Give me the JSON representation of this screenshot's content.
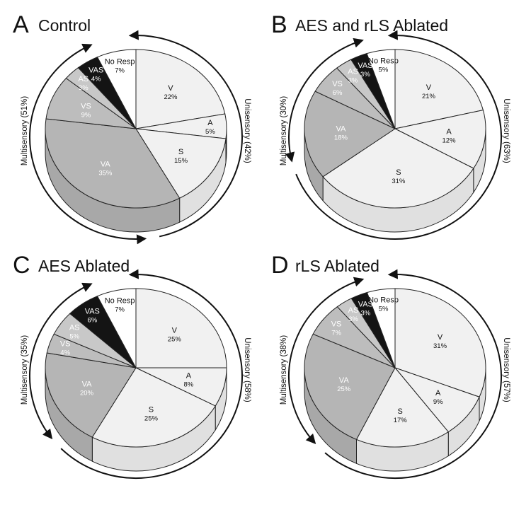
{
  "chart_data": [
    {
      "type": "pie",
      "panel_letter": "A",
      "title": "Control",
      "unisensory_label": "Unisensory (42%)",
      "multisensory_label": "Multisensory (51%)",
      "slices": [
        {
          "label": "V",
          "pct_label": "22%",
          "value": 22,
          "color": "#f1f1f1"
        },
        {
          "label": "A",
          "pct_label": "5%",
          "value": 5,
          "color": "#f1f1f1"
        },
        {
          "label": "S",
          "pct_label": "15%",
          "value": 15,
          "color": "#f1f1f1"
        },
        {
          "label": "VA",
          "pct_label": "35%",
          "value": 35,
          "color": "#b5b5b5"
        },
        {
          "label": "VS",
          "pct_label": "9%",
          "value": 9,
          "color": "#bdbdbd"
        },
        {
          "label": "AS",
          "pct_label": "3%",
          "value": 3,
          "color": "#c8c8c8"
        },
        {
          "label": "VAS",
          "pct_label": "4%",
          "value": 4,
          "color": "#141414"
        },
        {
          "label": "No Resp",
          "pct_label": "7%",
          "value": 7,
          "color": "#ffffff"
        }
      ]
    },
    {
      "type": "pie",
      "panel_letter": "B",
      "title": "AES and rLS Ablated",
      "unisensory_label": "Unisensory (63%)",
      "multisensory_label": "Multisensory (30%)",
      "slices": [
        {
          "label": "V",
          "pct_label": "21%",
          "value": 21,
          "color": "#f1f1f1"
        },
        {
          "label": "A",
          "pct_label": "12%",
          "value": 12,
          "color": "#f1f1f1"
        },
        {
          "label": "S",
          "pct_label": "31%",
          "value": 31,
          "color": "#f1f1f1"
        },
        {
          "label": "VA",
          "pct_label": "18%",
          "value": 18,
          "color": "#b5b5b5"
        },
        {
          "label": "VS",
          "pct_label": "6%",
          "value": 6,
          "color": "#bdbdbd"
        },
        {
          "label": "AS",
          "pct_label": "3%",
          "value": 3,
          "color": "#c8c8c8"
        },
        {
          "label": "VAS",
          "pct_label": "3%",
          "value": 3,
          "color": "#141414"
        },
        {
          "label": "No Resp",
          "pct_label": "5%",
          "value": 5,
          "color": "#ffffff"
        }
      ]
    },
    {
      "type": "pie",
      "panel_letter": "C",
      "title": "AES Ablated",
      "unisensory_label": "Unisensory (58%)",
      "multisensory_label": "Multisensory (35%)",
      "slices": [
        {
          "label": "V",
          "pct_label": "25%",
          "value": 25,
          "color": "#f1f1f1"
        },
        {
          "label": "A",
          "pct_label": "8%",
          "value": 8,
          "color": "#f1f1f1"
        },
        {
          "label": "S",
          "pct_label": "25%",
          "value": 25,
          "color": "#f1f1f1"
        },
        {
          "label": "VA",
          "pct_label": "20%",
          "value": 20,
          "color": "#b5b5b5"
        },
        {
          "label": "VS",
          "pct_label": "4%",
          "value": 4,
          "color": "#bdbdbd"
        },
        {
          "label": "AS",
          "pct_label": "5%",
          "value": 5,
          "color": "#c8c8c8"
        },
        {
          "label": "VAS",
          "pct_label": "6%",
          "value": 6,
          "color": "#141414"
        },
        {
          "label": "No Resp",
          "pct_label": "7%",
          "value": 7,
          "color": "#ffffff"
        }
      ]
    },
    {
      "type": "pie",
      "panel_letter": "D",
      "title": "rLS Ablated",
      "unisensory_label": "Unisensory (57%)",
      "multisensory_label": "Multisensory (38%)",
      "slices": [
        {
          "label": "V",
          "pct_label": "31%",
          "value": 31,
          "color": "#f1f1f1"
        },
        {
          "label": "A",
          "pct_label": "9%",
          "value": 9,
          "color": "#f1f1f1"
        },
        {
          "label": "S",
          "pct_label": "17%",
          "value": 17,
          "color": "#f1f1f1"
        },
        {
          "label": "VA",
          "pct_label": "25%",
          "value": 25,
          "color": "#b5b5b5"
        },
        {
          "label": "VS",
          "pct_label": "7%",
          "value": 7,
          "color": "#bdbdbd"
        },
        {
          "label": "AS",
          "pct_label": "3%",
          "value": 3,
          "color": "#c8c8c8"
        },
        {
          "label": "VAS",
          "pct_label": "3%",
          "value": 3,
          "color": "#141414"
        },
        {
          "label": "No Resp",
          "pct_label": "5%",
          "value": 5,
          "color": "#ffffff"
        }
      ]
    }
  ]
}
